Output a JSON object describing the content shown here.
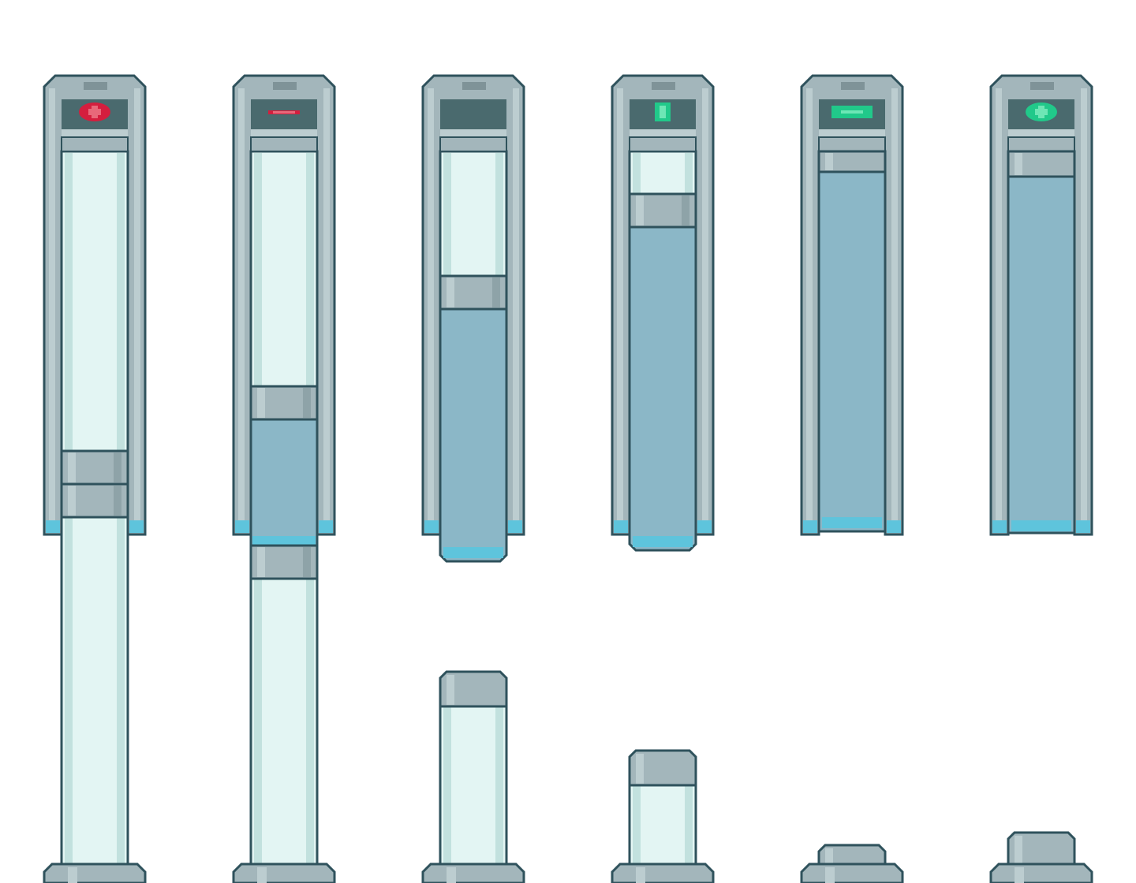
{
  "sprite_sheet": {
    "palette": {
      "outline": "#2f525c",
      "metal": "#a3b6bb",
      "metal_light": "#bccdd0",
      "glass": "#e3f5f3",
      "glass_edge": "#c2e1de",
      "fluid": "#8bb7c7",
      "fluid_glow": "#5ec4dc",
      "screen": "#4a6a6e",
      "indicator_red": "#d41e3e",
      "indicator_red_light": "#e8687a",
      "indicator_green": "#21c98a",
      "indicator_green_light": "#6de6b5"
    },
    "frames": [
      {
        "label": "full-extended",
        "indicator_icon": "plus-icon",
        "indicator_color": "red"
      },
      {
        "label": "extended",
        "indicator_icon": "minus-icon",
        "indicator_color": "red"
      },
      {
        "label": "half",
        "indicator_icon": "none",
        "indicator_color": "none"
      },
      {
        "label": "retracting",
        "indicator_icon": "bar-icon",
        "indicator_color": "green"
      },
      {
        "label": "retracted",
        "indicator_icon": "minus-icon",
        "indicator_color": "green"
      },
      {
        "label": "full-retracted",
        "indicator_icon": "plus-icon",
        "indicator_color": "green"
      }
    ]
  }
}
